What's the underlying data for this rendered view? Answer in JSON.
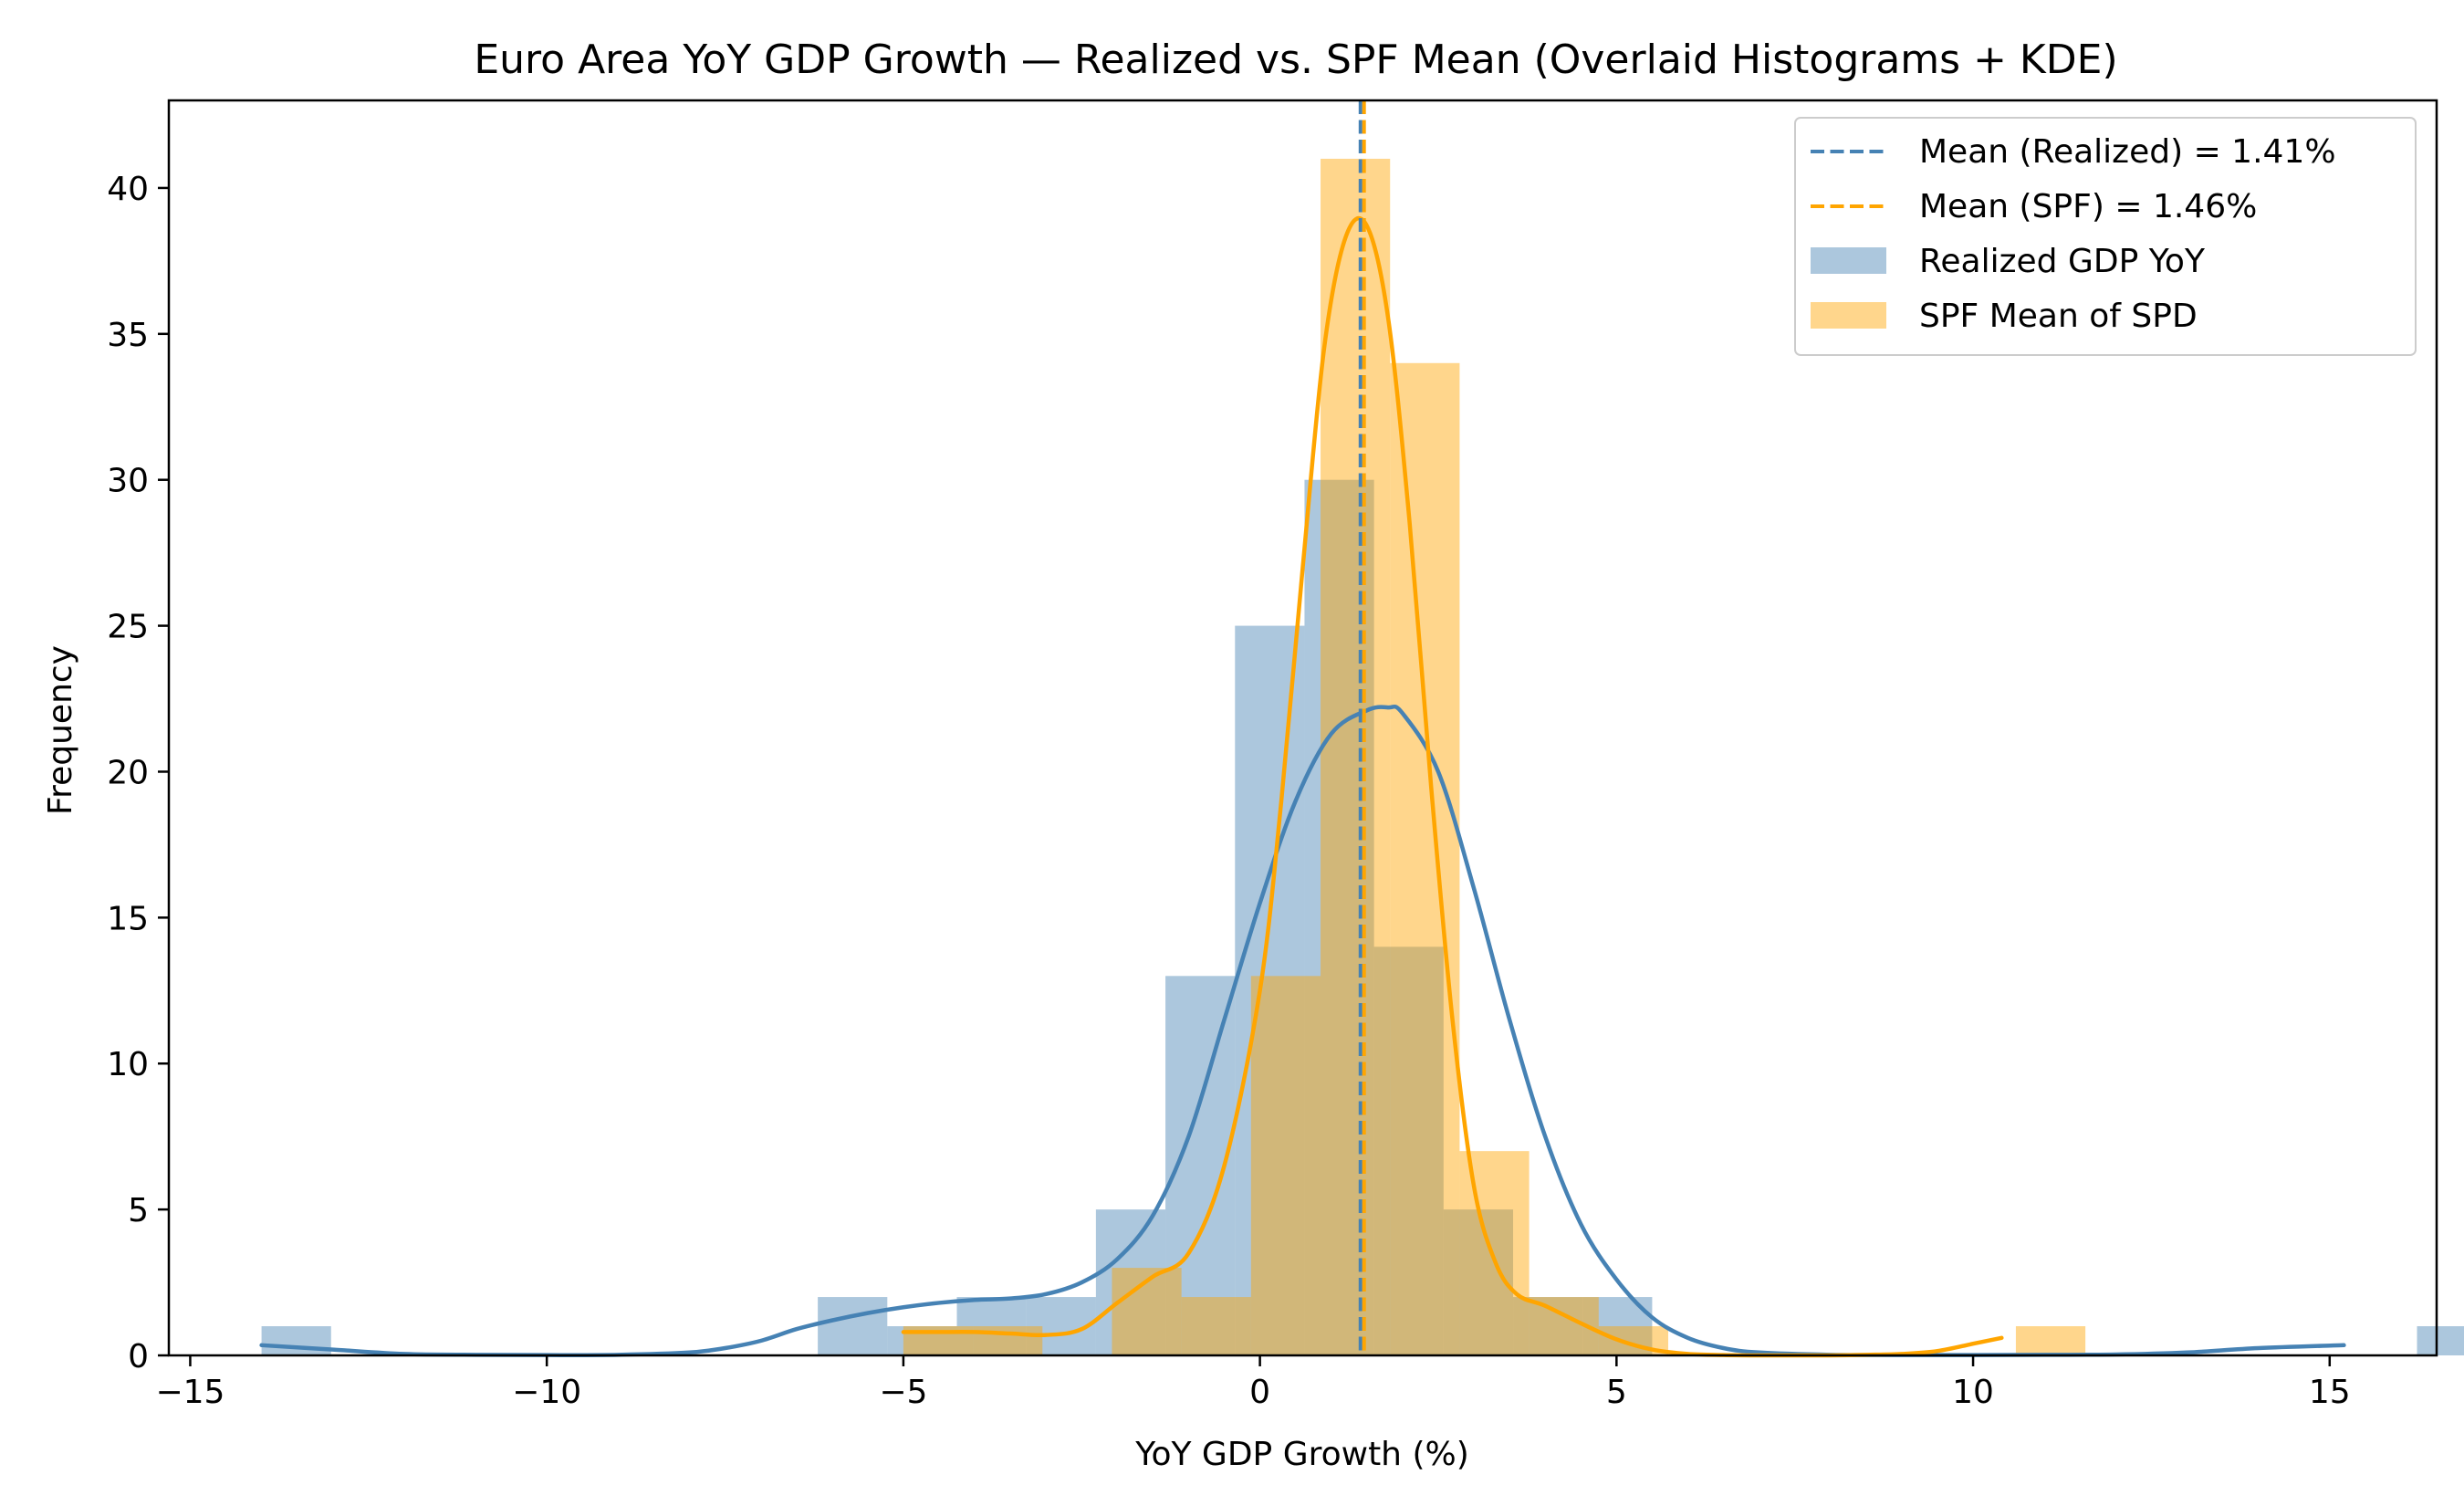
{
  "chart_data": {
    "type": "bar",
    "title": "Euro Area YoY GDP Growth — Realized vs. SPF Mean (Overlaid Histograms + KDE)",
    "xlabel": "YoY GDP Growth (%)",
    "ylabel": "Frequency",
    "xlim": [
      -15.3,
      16.5
    ],
    "ylim": [
      0,
      43
    ],
    "xticks": [
      -15,
      -10,
      -5,
      0,
      5,
      10,
      15
    ],
    "xtick_labels": [
      "−15",
      "−10",
      "−5",
      "0",
      "5",
      "10",
      "15"
    ],
    "yticks": [
      0,
      5,
      10,
      15,
      20,
      25,
      30,
      35,
      40
    ],
    "ytick_labels": [
      "0",
      "5",
      "10",
      "15",
      "20",
      "25",
      "30",
      "35",
      "40"
    ],
    "grid": false,
    "legend_position": "top-right",
    "colors": {
      "realized": "#4682b4",
      "spf": "#ffa500",
      "realized_bar": "#4682b4",
      "spf_bar": "#ffa500"
    },
    "series": [
      {
        "name": "Realized GDP YoY",
        "kind": "histogram",
        "color": "#4682b4",
        "opacity": 0.45,
        "bin_start": -14.0,
        "bin_width": 0.975,
        "counts": [
          1,
          0,
          0,
          0,
          0,
          0,
          0,
          0,
          2,
          1,
          2,
          2,
          5,
          13,
          25,
          30,
          14,
          5,
          2,
          2,
          0,
          0,
          0,
          0,
          0,
          0,
          0,
          0,
          0,
          0,
          0,
          1
        ]
      },
      {
        "name": "SPF Mean of SPD",
        "kind": "histogram",
        "color": "#ffa500",
        "opacity": 0.45,
        "bin_start": -5.0,
        "bin_width": 0.975,
        "counts": [
          1,
          1,
          0,
          3,
          2,
          13,
          41,
          34,
          7,
          2,
          1,
          0,
          0,
          0,
          0,
          0,
          1
        ]
      }
    ],
    "kde": [
      {
        "name": "Realized KDE",
        "color": "#4682b4",
        "x": [
          -14,
          -13,
          -12,
          -11,
          -10,
          -9,
          -8,
          -7.5,
          -7,
          -6.5,
          -6,
          -5.5,
          -5,
          -4.5,
          -4,
          -3.5,
          -3,
          -2.5,
          -2,
          -1.5,
          -1,
          -0.5,
          0,
          0.5,
          1,
          1.5,
          1.8,
          2,
          2.5,
          3,
          3.5,
          4,
          4.5,
          5,
          5.5,
          6,
          6.5,
          7,
          8,
          9,
          10,
          11,
          12,
          13,
          14,
          15.2
        ],
        "y": [
          0.35,
          0.2,
          0.05,
          0.02,
          0.01,
          0.02,
          0.1,
          0.25,
          0.5,
          0.9,
          1.2,
          1.45,
          1.65,
          1.8,
          1.9,
          1.95,
          2.1,
          2.5,
          3.3,
          4.8,
          7.5,
          11.5,
          15.5,
          19.0,
          21.3,
          22.1,
          22.2,
          22.0,
          20.0,
          16.0,
          11.5,
          7.5,
          4.5,
          2.6,
          1.3,
          0.6,
          0.25,
          0.1,
          0.02,
          0.01,
          0.01,
          0.02,
          0.03,
          0.1,
          0.25,
          0.35
        ]
      },
      {
        "name": "SPF KDE",
        "color": "#ffa500",
        "x": [
          -5,
          -4.5,
          -4,
          -3.5,
          -3,
          -2.5,
          -2,
          -1.5,
          -1,
          -0.5,
          0,
          0.3,
          0.6,
          0.9,
          1.2,
          1.5,
          1.8,
          2.1,
          2.4,
          2.7,
          3,
          3.3,
          3.6,
          4,
          4.5,
          5,
          5.5,
          6,
          6.5,
          7,
          7.5,
          8,
          8.5,
          9,
          9.5,
          10,
          10.4
        ],
        "y": [
          0.8,
          0.8,
          0.8,
          0.75,
          0.7,
          0.9,
          1.8,
          2.7,
          3.5,
          6.5,
          12.5,
          19.0,
          27.0,
          34.5,
          38.3,
          38.7,
          35.5,
          28.5,
          19.5,
          11.5,
          5.8,
          3.2,
          2.1,
          1.7,
          1.1,
          0.55,
          0.2,
          0.05,
          0.01,
          0,
          0,
          0,
          0.02,
          0.05,
          0.15,
          0.4,
          0.6
        ]
      }
    ],
    "mean_lines": [
      {
        "label": "Mean (Realized) = 1.41%",
        "x": 1.41,
        "color": "#4682b4"
      },
      {
        "label": "Mean (SPF) = 1.46%",
        "x": 1.46,
        "color": "#ffa500"
      }
    ]
  }
}
